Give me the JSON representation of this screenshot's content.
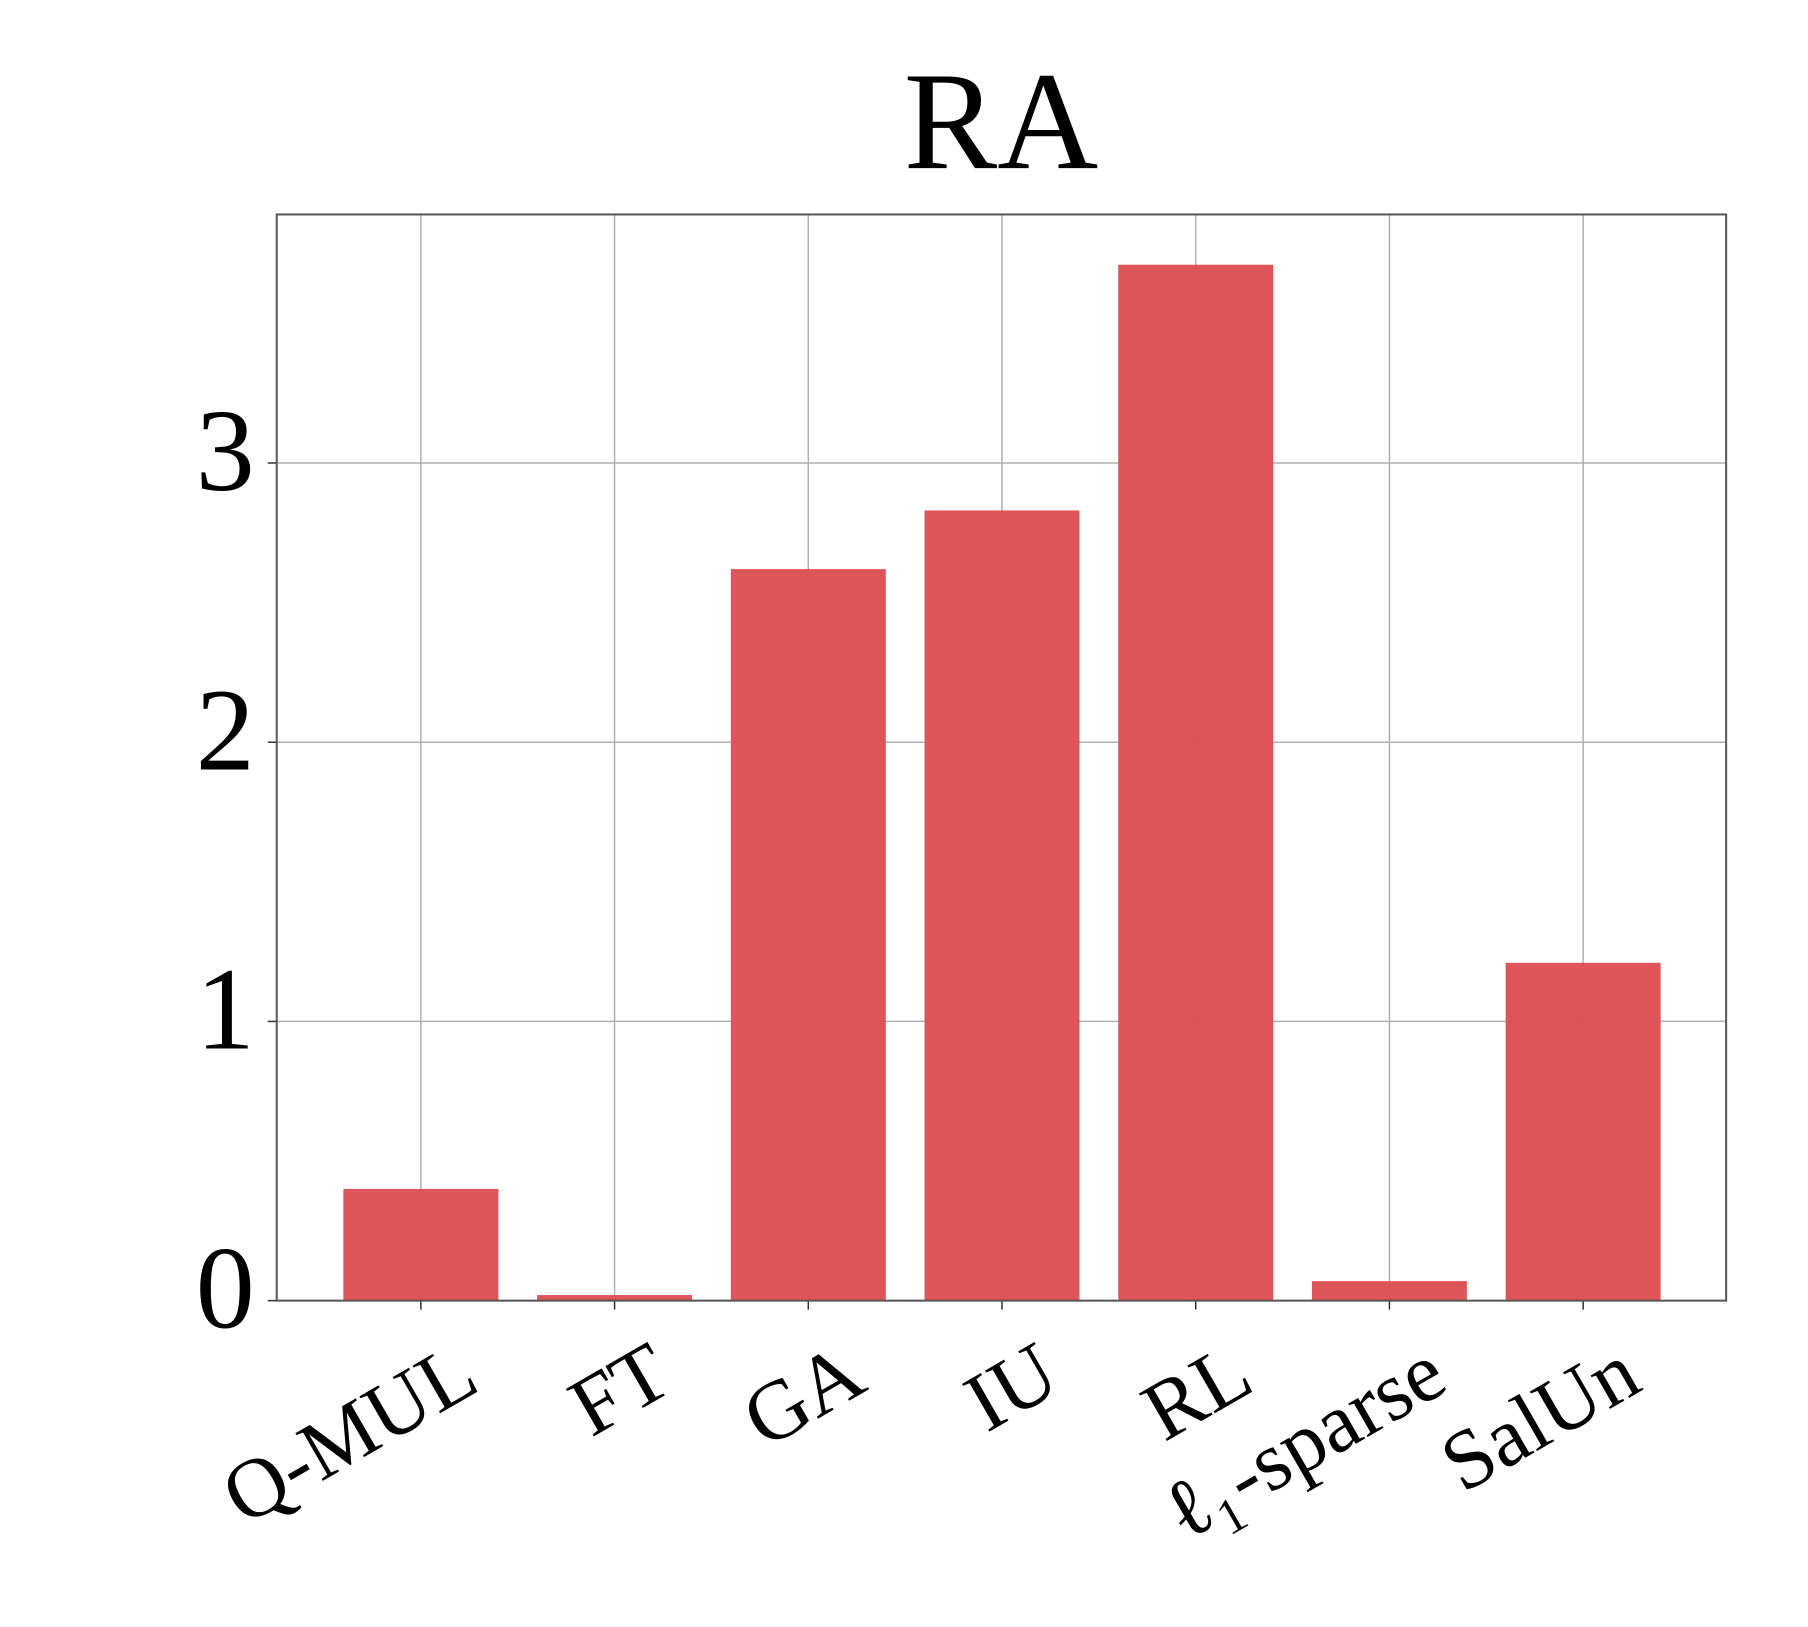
{
  "chart_data": {
    "type": "bar",
    "title": "RA",
    "categories": [
      "Q-MUL",
      "FT",
      "GA",
      "IU",
      "RL",
      "ℓ₁-sparse",
      "SalUn"
    ],
    "values": [
      0.4,
      0.02,
      2.62,
      2.83,
      3.71,
      0.07,
      1.21
    ],
    "color": "#dc4f53",
    "ylim": [
      0,
      3.89
    ],
    "yticks": [
      0,
      1,
      2,
      3
    ],
    "grid": true
  }
}
